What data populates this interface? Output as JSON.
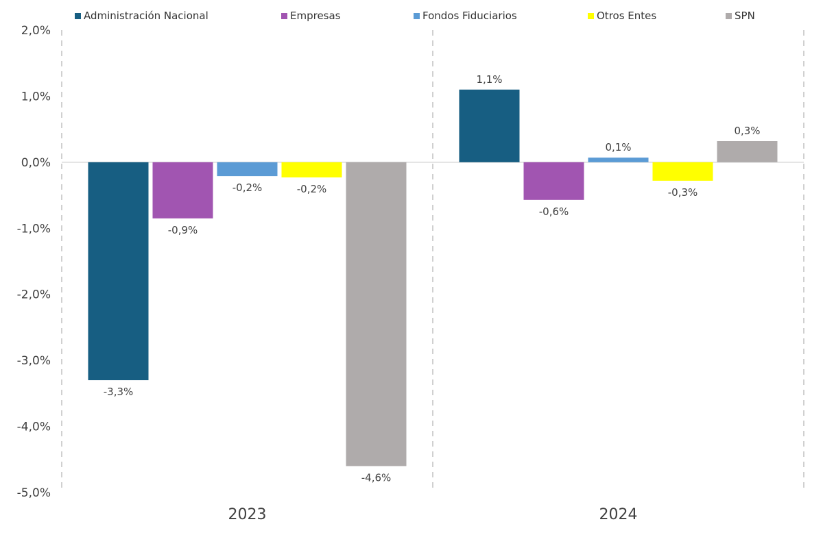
{
  "chart_data": {
    "type": "bar",
    "categories": [
      "2023",
      "2024"
    ],
    "series": [
      {
        "name": "Administración Nacional",
        "color": "#175E82",
        "values": [
          -3.3,
          1.1
        ],
        "labels": [
          "-3,3%",
          "1,1%"
        ]
      },
      {
        "name": "Empresas",
        "color": "#A155B1",
        "values": [
          -0.85,
          -0.57
        ],
        "labels": [
          "-0,9%",
          "-0,6%"
        ]
      },
      {
        "name": "Fondos Fiduciarios",
        "color": "#5B9BD5",
        "values": [
          -0.21,
          0.07
        ],
        "labels": [
          "-0,2%",
          "0,1%"
        ]
      },
      {
        "name": "Otros Entes",
        "color": "#FFFF00",
        "values": [
          -0.23,
          -0.28
        ],
        "labels": [
          "-0,2%",
          "-0,3%"
        ]
      },
      {
        "name": "SPN",
        "color": "#AFABAB",
        "values": [
          -4.6,
          0.32
        ],
        "labels": [
          "-4,6%",
          "0,3%"
        ]
      }
    ],
    "yticks": [
      "2,0%",
      "1,0%",
      "0,0%",
      "-1,0%",
      "-2,0%",
      "-3,0%",
      "-4,0%",
      "-5,0%"
    ],
    "ylim": [
      -5,
      2
    ],
    "legend_position": "top",
    "grid": false,
    "title": "",
    "xlabel": "",
    "ylabel": ""
  }
}
